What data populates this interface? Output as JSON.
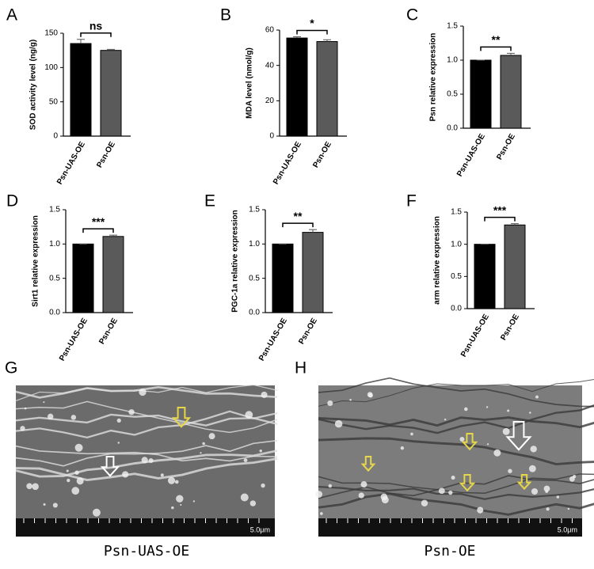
{
  "chart_data": [
    {
      "type": "bar",
      "panel": "A",
      "ylabel": "SOD activity level (ng/g)",
      "annotation": "ns",
      "categories": [
        "Psn-UAS-OE",
        "Psn-OE"
      ],
      "values": [
        135,
        125
      ],
      "errors": [
        6,
        1.5
      ],
      "colors": [
        "#000000",
        "#5a5a5a"
      ],
      "ylim": [
        0,
        150
      ],
      "yticks": [
        0,
        50,
        100,
        150
      ]
    },
    {
      "type": "bar",
      "panel": "B",
      "ylabel": "MDA  level (nmol/g)",
      "annotation": "*",
      "categories": [
        "Psn-UAS-OE",
        "Psn-OE"
      ],
      "values": [
        55.5,
        53.5
      ],
      "errors": [
        0.7,
        1
      ],
      "colors": [
        "#000000",
        "#5a5a5a"
      ],
      "ylim": [
        0,
        60
      ],
      "yticks": [
        0,
        20,
        40,
        60
      ]
    },
    {
      "type": "bar",
      "panel": "C",
      "ylabel": "Psn relative expression",
      "annotation": "**",
      "categories": [
        "Psn-UAS-OE",
        "Psn-OE"
      ],
      "values": [
        1.0,
        1.07
      ],
      "errors": [
        0,
        0.03
      ],
      "colors": [
        "#000000",
        "#5a5a5a"
      ],
      "ylim": [
        0,
        1.5
      ],
      "yticks": [
        {
          "value": 0,
          "label": "0.0"
        },
        0.5,
        {
          "value": 1,
          "label": "1.0"
        },
        1.5
      ]
    },
    {
      "type": "bar",
      "panel": "D",
      "ylabel": "Sirt1 relative expression",
      "annotation": "***",
      "categories": [
        "Psn-UAS-OE",
        "Psn-OE"
      ],
      "values": [
        1.0,
        1.11
      ],
      "errors": [
        0,
        0.02
      ],
      "colors": [
        "#000000",
        "#5a5a5a"
      ],
      "ylim": [
        0,
        1.5
      ],
      "yticks": [
        {
          "value": 0,
          "label": "0.0"
        },
        0.5,
        {
          "value": 1,
          "label": "1.0"
        },
        1.5
      ]
    },
    {
      "type": "bar",
      "panel": "E",
      "ylabel": "PGC-1a relative expression",
      "annotation": "**",
      "categories": [
        "Psn-UAS-OE",
        "Psn-OE"
      ],
      "values": [
        1.0,
        1.17
      ],
      "errors": [
        0,
        0.04
      ],
      "colors": [
        "#000000",
        "#5a5a5a"
      ],
      "ylim": [
        0,
        1.5
      ],
      "yticks": [
        {
          "value": 0,
          "label": "0.0"
        },
        0.5,
        {
          "value": 1,
          "label": "1.0"
        },
        1.5
      ]
    },
    {
      "type": "bar",
      "panel": "F",
      "ylabel": "arm relative expression",
      "annotation": "***",
      "categories": [
        "Psn-UAS-OE",
        "Psn-OE"
      ],
      "values": [
        1.0,
        1.3
      ],
      "errors": [
        0,
        0.02
      ],
      "colors": [
        "#000000",
        "#5a5a5a"
      ],
      "ylim": [
        0,
        1.5
      ],
      "yticks": [
        {
          "value": 0,
          "label": "0.0"
        },
        0.5,
        {
          "value": 1,
          "label": "1.0"
        },
        1.5
      ]
    }
  ],
  "images": [
    {
      "panel": "G",
      "caption": "Psn-UAS-OE",
      "scale_bar": "5.0μm"
    },
    {
      "panel": "H",
      "caption": "Psn-OE",
      "scale_bar": "5.0μm"
    }
  ]
}
